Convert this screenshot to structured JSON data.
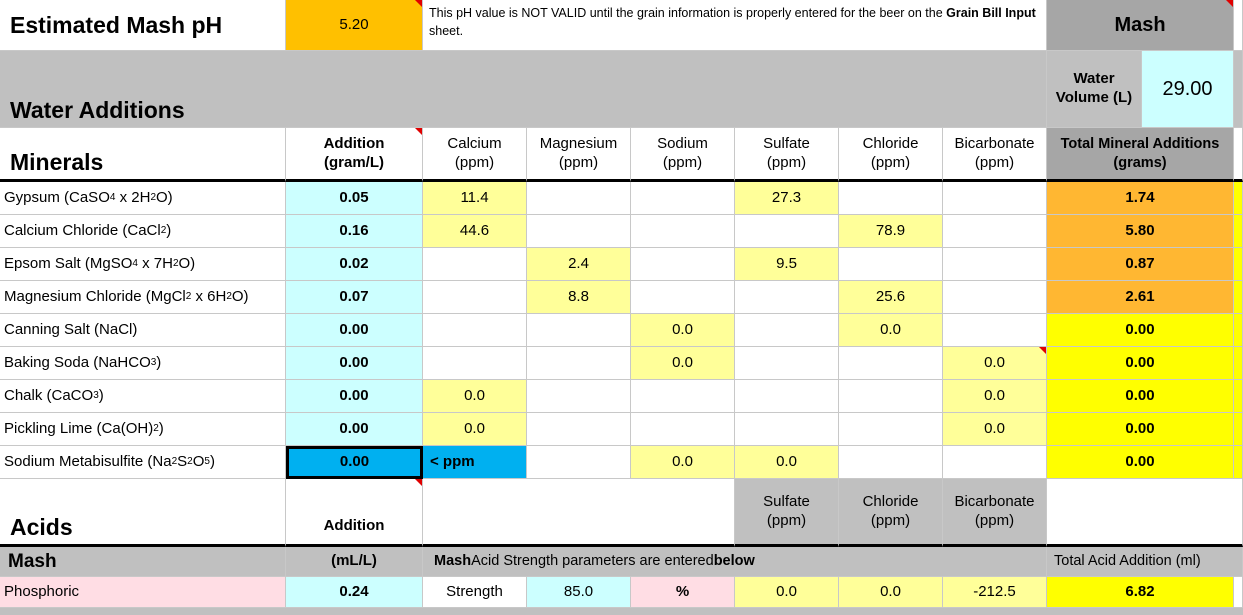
{
  "top": {
    "title": "Estimated Mash pH",
    "ph_value": "5.20",
    "note_prefix": "This pH value is NOT VALID until the grain information is properly entered for the beer on the ",
    "note_bold": "Grain Bill Input",
    "note_suffix": " sheet.",
    "mash_label": "Mash"
  },
  "water": {
    "title": "Water Additions",
    "volume_label": "Water Volume (L)",
    "volume_value": "29.00"
  },
  "minerals": {
    "title": "Minerals",
    "headers": {
      "addition": "Addition (gram/L)",
      "calcium": "Calcium (ppm)",
      "magnesium": "Magnesium (ppm)",
      "sodium": "Sodium (ppm)",
      "sulfate": "Sulfate (ppm)",
      "chloride": "Chloride (ppm)",
      "bicarbonate": "Bicarbonate (ppm)",
      "total": "Total Mineral Additions (grams)"
    },
    "rows": [
      {
        "name": "Gypsum (CaSO4 x 2H2O)",
        "addition": "0.05",
        "calcium": "11.4",
        "magnesium": "",
        "sodium": "",
        "sulfate": "27.3",
        "chloride": "",
        "bicarbonate": "",
        "total": "1.74"
      },
      {
        "name": "Calcium Chloride (CaCl2)",
        "addition": "0.16",
        "calcium": "44.6",
        "magnesium": "",
        "sodium": "",
        "sulfate": "",
        "chloride": "78.9",
        "bicarbonate": "",
        "total": "5.80"
      },
      {
        "name": "Epsom Salt (MgSO4 x 7H2O)",
        "addition": "0.02",
        "calcium": "",
        "magnesium": "2.4",
        "sodium": "",
        "sulfate": "9.5",
        "chloride": "",
        "bicarbonate": "",
        "total": "0.87"
      },
      {
        "name": "Magnesium Chloride (MgCl2 x 6H2O)",
        "addition": "0.07",
        "calcium": "",
        "magnesium": "8.8",
        "sodium": "",
        "sulfate": "",
        "chloride": "25.6",
        "bicarbonate": "",
        "total": "2.61"
      },
      {
        "name": "Canning Salt (NaCl)",
        "addition": "0.00",
        "calcium": "",
        "magnesium": "",
        "sodium": "0.0",
        "sulfate": "",
        "chloride": "0.0",
        "bicarbonate": "",
        "total": "0.00"
      },
      {
        "name": "Baking Soda (NaHCO3)",
        "addition": "0.00",
        "calcium": "",
        "magnesium": "",
        "sodium": "0.0",
        "sulfate": "",
        "chloride": "",
        "bicarbonate": "0.0",
        "total": "0.00"
      },
      {
        "name": "Chalk (CaCO3)",
        "addition": "0.00",
        "calcium": "0.0",
        "magnesium": "",
        "sodium": "",
        "sulfate": "",
        "chloride": "",
        "bicarbonate": "0.0",
        "total": "0.00"
      },
      {
        "name": "Pickling Lime (Ca(OH)2)",
        "addition": "0.00",
        "calcium": "0.0",
        "magnesium": "",
        "sodium": "",
        "sulfate": "",
        "chloride": "",
        "bicarbonate": "0.0",
        "total": "0.00"
      },
      {
        "name": "Sodium Metabisulfite (Na2S2O5)",
        "addition": "0.00",
        "calcium": "< ppm",
        "magnesium": "",
        "sodium": "0.0",
        "sulfate": "0.0",
        "chloride": "",
        "bicarbonate": "",
        "total": "0.00"
      }
    ]
  },
  "acids": {
    "title": "Acids",
    "addition_label": "Addition",
    "sulfate": "Sulfate (ppm)",
    "chloride": "Chloride (ppm)",
    "bicarbonate": "Bicarbonate (ppm)",
    "mash_label": "Mash",
    "unit_label": "(mL/L)",
    "strength_note_1": "Mash",
    "strength_note_2": " Acid Strength parameters are entered ",
    "strength_note_3": "below",
    "total_label": "Total Acid Addition (ml)",
    "row": {
      "name": "Phosphoric",
      "addition": "0.24",
      "strength_label": "Strength",
      "strength": "85.0",
      "percent": "%",
      "sulfate": "0.0",
      "chloride": "0.0",
      "bicarbonate": "-212.5",
      "total": "6.82"
    }
  }
}
